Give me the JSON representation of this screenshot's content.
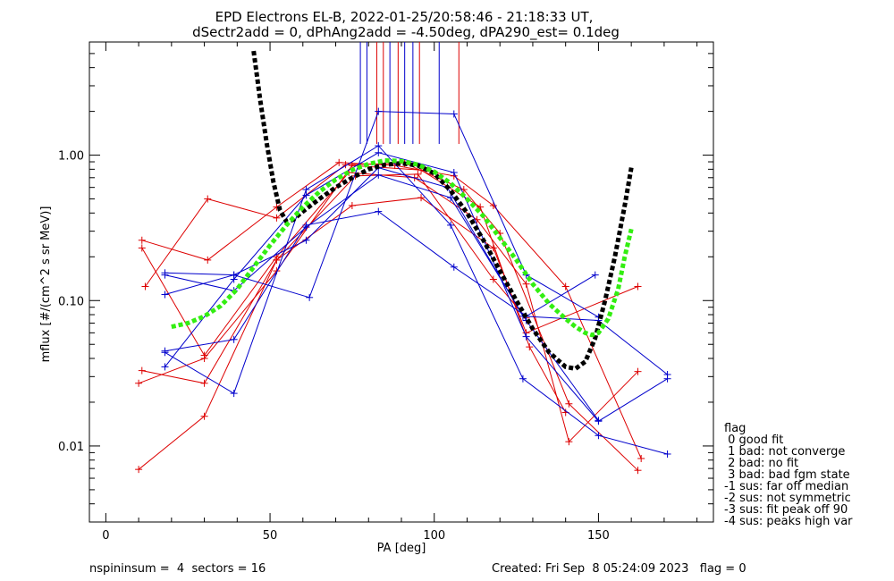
{
  "chart_data": {
    "type": "line",
    "title": "EPD Electrons EL-B, 2022-01-25/20:58:46 - 21:18:33 UT,",
    "subtitle": "dSectr2add = 0, dPhAng2add = -4.50deg, dPA290_est=   0.1deg",
    "xlabel": "PA [deg]",
    "ylabel": "mflux [#/(cm^2 s sr MeV)]",
    "xlim": [
      -5,
      185
    ],
    "ylim": [
      0.003,
      6.0
    ],
    "yscale": "log",
    "xticks": [
      0,
      50,
      100,
      150
    ],
    "xtick_labels": [
      "0",
      "50",
      "100",
      "150"
    ],
    "yticks": [
      0.01,
      0.1,
      1.0
    ],
    "ytick_labels": [
      "0.01",
      "0.10",
      "1.00"
    ],
    "grid": false,
    "legend": {
      "position": "right",
      "title": "flag",
      "entries": [
        " 0 good fit",
        " 1 bad: not converge",
        " 2 bad: no fit",
        " 3 bad: bad fgm state",
        "-1 sus: far off median",
        "-2 sus: not symmetric",
        "-3 sus: fit peak off 90",
        "-4 sus: peaks high var"
      ]
    },
    "footer": {
      "left": "nspininsum =  4  sectors = 16",
      "right": "Created: Fri Sep  8 05:24:09 2023   flag = 0"
    },
    "colors": {
      "red": "#dd0000",
      "blue": "#0000cc",
      "fit_black": "#000000",
      "fit_green": "#33ee11"
    },
    "vertical_markers": [
      {
        "x": 77.5,
        "color": "#0000cc"
      },
      {
        "x": 79.5,
        "color": "#0000cc"
      },
      {
        "x": 82.5,
        "color": "#dd0000"
      },
      {
        "x": 84.5,
        "color": "#dd0000"
      },
      {
        "x": 86.5,
        "color": "#0000cc"
      },
      {
        "x": 89.0,
        "color": "#dd0000"
      },
      {
        "x": 91.0,
        "color": "#0000cc"
      },
      {
        "x": 93.5,
        "color": "#0000cc"
      },
      {
        "x": 95.5,
        "color": "#dd0000"
      },
      {
        "x": 101.5,
        "color": "#0000cc"
      },
      {
        "x": 107.5,
        "color": "#dd0000"
      }
    ],
    "series": [
      {
        "color": "#dd0000",
        "x": [
          11,
          31,
          52,
          71,
          88,
          106,
          118,
          140,
          163
        ],
        "y": [
          0.26,
          0.19,
          0.44,
          0.89,
          0.85,
          0.72,
          0.45,
          0.125,
          0.0082
        ]
      },
      {
        "color": "#dd0000",
        "x": [
          12,
          31,
          52,
          73,
          91,
          109,
          120,
          141,
          162
        ],
        "y": [
          0.125,
          0.5,
          0.37,
          0.86,
          0.88,
          0.58,
          0.29,
          0.0195,
          0.0068
        ]
      },
      {
        "color": "#dd0000",
        "x": [
          11,
          30,
          52,
          74,
          94,
          113,
          128,
          141,
          162
        ],
        "y": [
          0.23,
          0.042,
          0.2,
          0.76,
          0.7,
          0.36,
          0.13,
          0.0107,
          0.0325
        ]
      },
      {
        "color": "#dd0000",
        "x": [
          10,
          30,
          52,
          75,
          96,
          114,
          129,
          140
        ],
        "y": [
          0.027,
          0.04,
          0.16,
          0.85,
          0.79,
          0.44,
          0.048,
          0.017
        ]
      },
      {
        "color": "#dd0000",
        "x": [
          10,
          30,
          52,
          75,
          96,
          118,
          128,
          162
        ],
        "y": [
          0.0069,
          0.016,
          0.19,
          0.45,
          0.51,
          0.23,
          0.06,
          0.125
        ]
      },
      {
        "color": "#dd0000",
        "x": [
          11,
          30,
          52,
          76,
          95,
          118,
          128
        ],
        "y": [
          0.033,
          0.027,
          0.19,
          0.72,
          0.74,
          0.14,
          0.076
        ]
      },
      {
        "color": "#0000cc",
        "x": [
          18,
          39,
          62,
          83,
          106,
          128,
          150
        ],
        "y": [
          0.155,
          0.15,
          0.105,
          2.0,
          1.92,
          0.15,
          0.077
        ]
      },
      {
        "color": "#0000cc",
        "x": [
          18,
          39,
          61,
          83,
          106,
          128,
          149
        ],
        "y": [
          0.045,
          0.054,
          0.33,
          0.41,
          0.17,
          0.078,
          0.15
        ]
      },
      {
        "color": "#0000cc",
        "x": [
          18,
          39,
          61,
          83,
          104,
          127,
          150,
          171
        ],
        "y": [
          0.11,
          0.15,
          0.26,
          0.82,
          0.6,
          0.078,
          0.073,
          0.031
        ]
      },
      {
        "color": "#0000cc",
        "x": [
          18,
          39,
          61,
          83,
          105,
          127,
          150,
          171
        ],
        "y": [
          0.044,
          0.023,
          0.58,
          1.16,
          0.33,
          0.029,
          0.0118,
          0.0088
        ]
      },
      {
        "color": "#0000cc",
        "x": [
          18,
          39,
          61,
          83,
          106,
          128,
          150,
          171
        ],
        "y": [
          0.035,
          0.14,
          0.53,
          1.04,
          0.76,
          0.0565,
          0.0148,
          0.029
        ]
      },
      {
        "color": "#0000cc",
        "x": [
          18,
          39,
          61,
          83,
          105,
          128,
          150
        ],
        "y": [
          0.15,
          0.117,
          0.32,
          0.73,
          0.51,
          0.073,
          0.015
        ]
      }
    ],
    "fit_curves": [
      {
        "color": "#000000",
        "x": [
          45,
          47,
          49,
          51,
          53,
          55,
          57,
          60,
          65,
          70,
          75,
          80,
          85,
          90,
          95,
          100,
          105,
          110,
          115,
          120,
          125,
          130,
          135,
          140,
          143,
          146,
          149,
          152,
          155,
          158,
          160
        ],
        "y": [
          5.2,
          2.4,
          1.2,
          0.66,
          0.42,
          0.35,
          0.36,
          0.41,
          0.5,
          0.6,
          0.7,
          0.8,
          0.86,
          0.88,
          0.85,
          0.75,
          0.57,
          0.4,
          0.26,
          0.16,
          0.1,
          0.064,
          0.044,
          0.035,
          0.034,
          0.038,
          0.055,
          0.1,
          0.2,
          0.45,
          0.82
        ]
      },
      {
        "color": "#33ee11",
        "x": [
          20,
          25,
          30,
          35,
          40,
          45,
          50,
          55,
          60,
          65,
          70,
          75,
          80,
          85,
          90,
          95,
          100,
          105,
          110,
          115,
          120,
          125,
          130,
          135,
          140,
          143,
          146,
          148,
          150,
          153,
          156,
          158,
          160
        ],
        "y": [
          0.066,
          0.07,
          0.078,
          0.092,
          0.12,
          0.17,
          0.24,
          0.33,
          0.44,
          0.56,
          0.68,
          0.79,
          0.87,
          0.92,
          0.91,
          0.86,
          0.77,
          0.64,
          0.5,
          0.38,
          0.27,
          0.19,
          0.13,
          0.095,
          0.075,
          0.066,
          0.06,
          0.058,
          0.06,
          0.075,
          0.12,
          0.2,
          0.31
        ]
      }
    ]
  }
}
